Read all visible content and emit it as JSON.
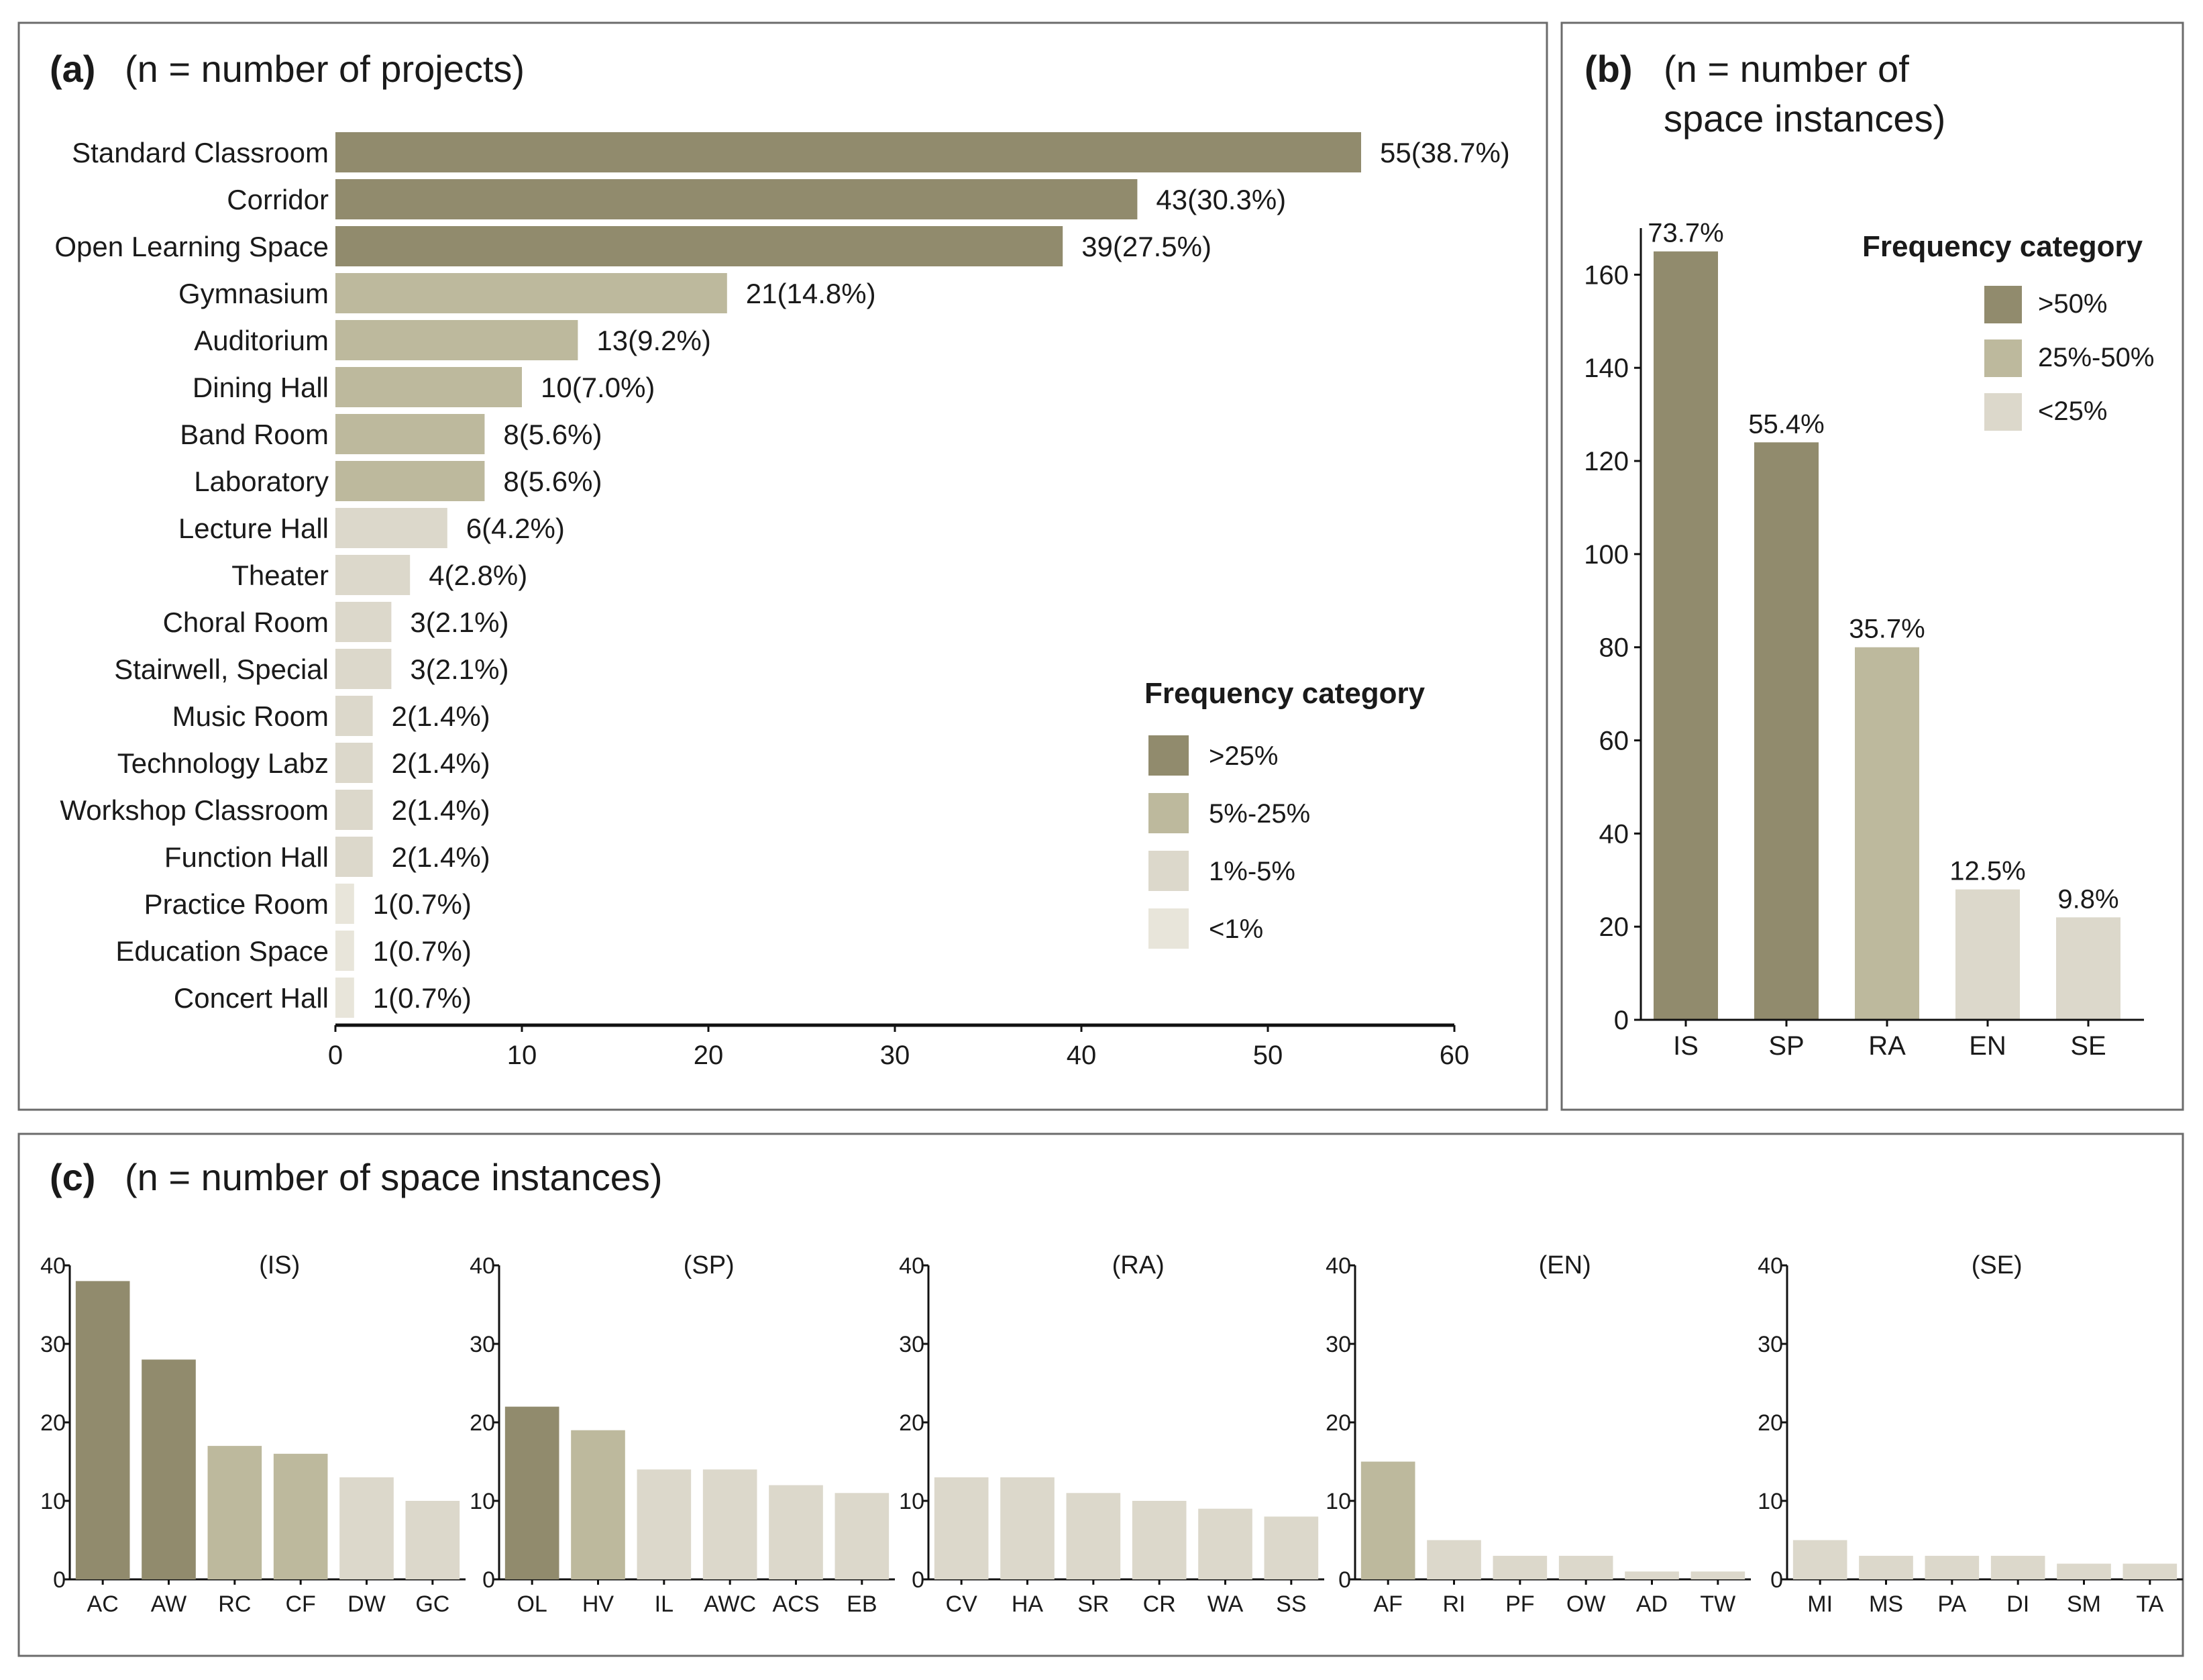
{
  "colors": {
    "dark": "#918b6d",
    "medium": "#bdb99d",
    "light": "#dcd8cb",
    "lightest": "#e8e5da",
    "frame": "#6b6b6b",
    "text": "#1a1a1a"
  },
  "chart_data": [
    {
      "id": "a",
      "type": "bar",
      "orientation": "horizontal",
      "panel_letter": "(a)",
      "title": "(n = number of projects)",
      "categories": [
        "Standard Classroom",
        "Corridor",
        "Open Learning Space",
        "Gymnasium",
        "Auditorium",
        "Dining Hall",
        "Band Room",
        "Laboratory",
        "Lecture Hall",
        "Theater",
        "Choral Room",
        "Stairwell, Special",
        "Music Room",
        "Technology Labz",
        "Workshop Classroom",
        "Function Hall",
        "Practice Room",
        "Education Space",
        "Concert Hall"
      ],
      "values": [
        55,
        43,
        39,
        21,
        13,
        10,
        8,
        8,
        6,
        4,
        3,
        3,
        2,
        2,
        2,
        2,
        1,
        1,
        1
      ],
      "value_labels": [
        "55(38.7%)",
        "43(30.3%)",
        "39(27.5%)",
        "21(14.8%)",
        "13(9.2%)",
        "10(7.0%)",
        "8(5.6%)",
        "8(5.6%)",
        "6(4.2%)",
        "4(2.8%)",
        "3(2.1%)",
        "3(2.1%)",
        "2(1.4%)",
        "2(1.4%)",
        "2(1.4%)",
        "2(1.4%)",
        "1(0.7%)",
        "1(0.7%)",
        "1(0.7%)"
      ],
      "categories_color": [
        "dark",
        "dark",
        "dark",
        "medium",
        "medium",
        "medium",
        "medium",
        "medium",
        "light",
        "light",
        "light",
        "light",
        "light",
        "light",
        "light",
        "light",
        "lightest",
        "lightest",
        "lightest"
      ],
      "xlim": [
        0,
        60
      ],
      "xticks": [
        "0",
        "10",
        "20",
        "30",
        "40",
        "50",
        "60"
      ],
      "legend": {
        "title": "Frequency category",
        "items": [
          {
            "label": ">25%",
            "color": "dark"
          },
          {
            "label": "5%-25%",
            "color": "medium"
          },
          {
            "label": "1%-5%",
            "color": "light"
          },
          {
            "label": "<1%",
            "color": "lightest"
          }
        ]
      }
    },
    {
      "id": "b",
      "type": "bar",
      "panel_letter": "(b)",
      "title_line1": "(n = number of",
      "title_line2": "space instances)",
      "categories": [
        "IS",
        "SP",
        "RA",
        "EN",
        "SE"
      ],
      "values": [
        165,
        124,
        80,
        28,
        22
      ],
      "value_labels": [
        "73.7%",
        "55.4%",
        "35.7%",
        "12.5%",
        "9.8%"
      ],
      "categories_color": [
        "dark",
        "dark",
        "medium",
        "light",
        "light"
      ],
      "ylim": [
        0,
        170
      ],
      "yticks": [
        "0",
        "20",
        "40",
        "60",
        "80",
        "100",
        "120",
        "140",
        "160"
      ],
      "legend": {
        "title": "Frequency category",
        "items": [
          {
            "label": ">50%",
            "color": "dark"
          },
          {
            "label": "25%-50%",
            "color": "medium"
          },
          {
            "label": "<25%",
            "color": "light"
          }
        ]
      }
    },
    {
      "id": "c",
      "type": "bar",
      "panel_letter": "(c)",
      "title": "(n = number of space instances)",
      "ylim": [
        0,
        40
      ],
      "yticks": [
        "0",
        "10",
        "20",
        "30",
        "40"
      ],
      "subcharts": [
        {
          "name": "(IS)",
          "categories": [
            "AC",
            "AW",
            "RC",
            "CF",
            "DW",
            "GC"
          ],
          "values": [
            38,
            28,
            17,
            16,
            13,
            10
          ],
          "colors": [
            "dark",
            "dark",
            "medium",
            "medium",
            "light",
            "light"
          ]
        },
        {
          "name": "(SP)",
          "categories": [
            "OL",
            "HV",
            "IL",
            "AWC",
            "ACS",
            "EB"
          ],
          "values": [
            22,
            19,
            14,
            14,
            12,
            11
          ],
          "colors": [
            "dark",
            "medium",
            "light",
            "light",
            "light",
            "light"
          ]
        },
        {
          "name": "(RA)",
          "categories": [
            "CV",
            "HA",
            "SR",
            "CR",
            "WA",
            "SS"
          ],
          "values": [
            13,
            13,
            11,
            10,
            9,
            8
          ],
          "colors": [
            "light",
            "light",
            "light",
            "light",
            "light",
            "light"
          ]
        },
        {
          "name": "(EN)",
          "categories": [
            "AF",
            "RI",
            "PF",
            "OW",
            "AD",
            "TW"
          ],
          "values": [
            15,
            5,
            3,
            3,
            1,
            1
          ],
          "colors": [
            "medium",
            "light",
            "light",
            "light",
            "light",
            "light"
          ]
        },
        {
          "name": "(SE)",
          "categories": [
            "MI",
            "MS",
            "PA",
            "DI",
            "SM",
            "TA"
          ],
          "values": [
            5,
            3,
            3,
            3,
            2,
            2
          ],
          "colors": [
            "light",
            "light",
            "light",
            "light",
            "light",
            "light"
          ]
        }
      ]
    }
  ]
}
